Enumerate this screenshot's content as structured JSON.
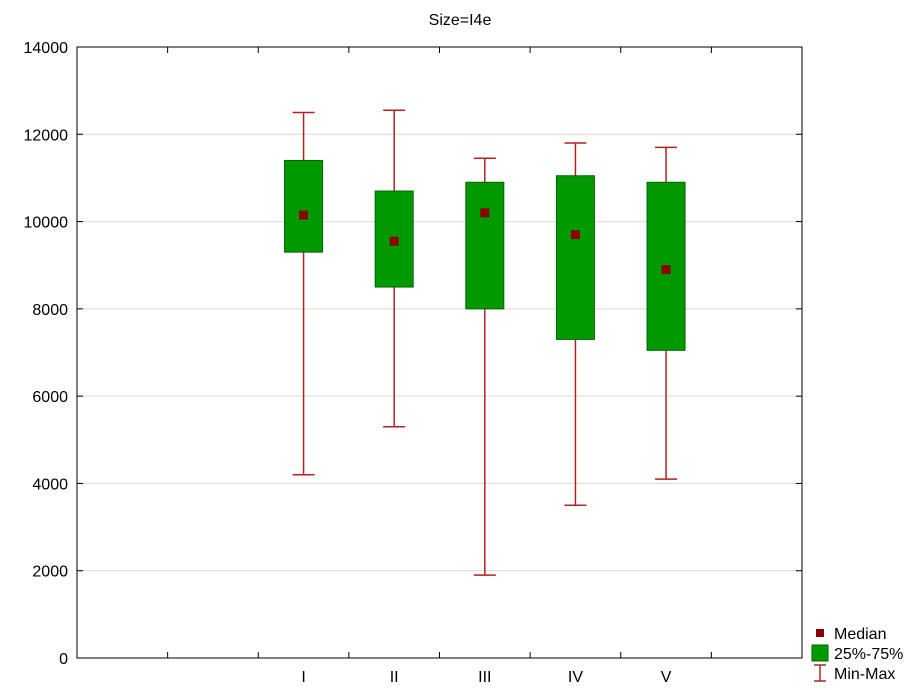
{
  "chart_data": {
    "type": "boxplot",
    "title": "Size=I4e",
    "xlabel": "",
    "ylabel": "",
    "ylim": [
      0,
      14000
    ],
    "yticks": [
      0,
      2000,
      4000,
      6000,
      8000,
      10000,
      12000,
      14000
    ],
    "grid": true,
    "categories": [
      "I",
      "II",
      "III",
      "IV",
      "V"
    ],
    "boxes": [
      {
        "category": "I",
        "min": 4200,
        "q1": 9300,
        "median": 10150,
        "q3": 11400,
        "max": 12500
      },
      {
        "category": "II",
        "min": 5300,
        "q1": 8500,
        "median": 9550,
        "q3": 10700,
        "max": 12550
      },
      {
        "category": "III",
        "min": 1900,
        "q1": 8000,
        "median": 10200,
        "q3": 10900,
        "max": 11450
      },
      {
        "category": "IV",
        "min": 3500,
        "q1": 7300,
        "median": 9700,
        "q3": 11050,
        "max": 11800
      },
      {
        "category": "V",
        "min": 4100,
        "q1": 7050,
        "median": 8900,
        "q3": 10900,
        "max": 11700
      }
    ],
    "legend": {
      "placement": "bottom-right",
      "items": [
        {
          "label": "Median",
          "symbol": "square",
          "color": "#8b0000"
        },
        {
          "label": "25%-75%",
          "symbol": "box",
          "color": "#009900"
        },
        {
          "label": "Min-Max",
          "symbol": "whisker",
          "color": "#b22222"
        }
      ]
    },
    "colors": {
      "median": "#8b0000",
      "box_fill": "#009900",
      "box_stroke": "#006400",
      "whisker": "#b22222",
      "grid": "#d9d9d9",
      "axis": "#000000"
    }
  }
}
